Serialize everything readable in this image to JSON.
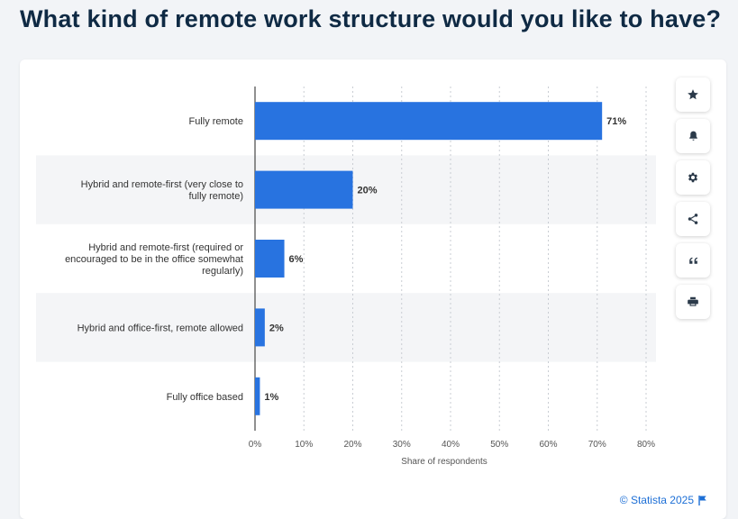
{
  "title": "What kind of remote work structure would you like to have?",
  "toolbar": {
    "buttons": [
      {
        "icon": "star-icon",
        "label": "favorite"
      },
      {
        "icon": "bell-icon",
        "label": "notification"
      },
      {
        "icon": "gear-icon",
        "label": "settings"
      },
      {
        "icon": "share-icon",
        "label": "share"
      },
      {
        "icon": "quote-icon",
        "label": "cite"
      },
      {
        "icon": "printer-icon",
        "label": "print"
      }
    ]
  },
  "credit": "© Statista 2025",
  "colors": {
    "bar": "#2873e0",
    "band": "#f4f5f7",
    "accent": "#1d6fd6"
  },
  "chart_data": {
    "type": "bar",
    "orientation": "horizontal",
    "categories": [
      [
        "Fully remote"
      ],
      [
        "Hybrid and remote-first (very close to",
        "fully remote)"
      ],
      [
        "Hybrid and remote-first (required or",
        "encouraged to be in the office somewhat",
        "regularly)"
      ],
      [
        "Hybrid and office-first, remote allowed"
      ],
      [
        "Fully office based"
      ]
    ],
    "values": [
      71,
      20,
      6,
      2,
      1
    ],
    "value_labels": [
      "71%",
      "20%",
      "6%",
      "2%",
      "1%"
    ],
    "xlabel": "Share of respondents",
    "xlim": [
      0,
      80
    ],
    "xticks": [
      0,
      10,
      20,
      30,
      40,
      50,
      60,
      70,
      80
    ],
    "xtick_labels": [
      "0%",
      "10%",
      "20%",
      "30%",
      "40%",
      "50%",
      "60%",
      "70%",
      "80%"
    ],
    "grid": true
  }
}
